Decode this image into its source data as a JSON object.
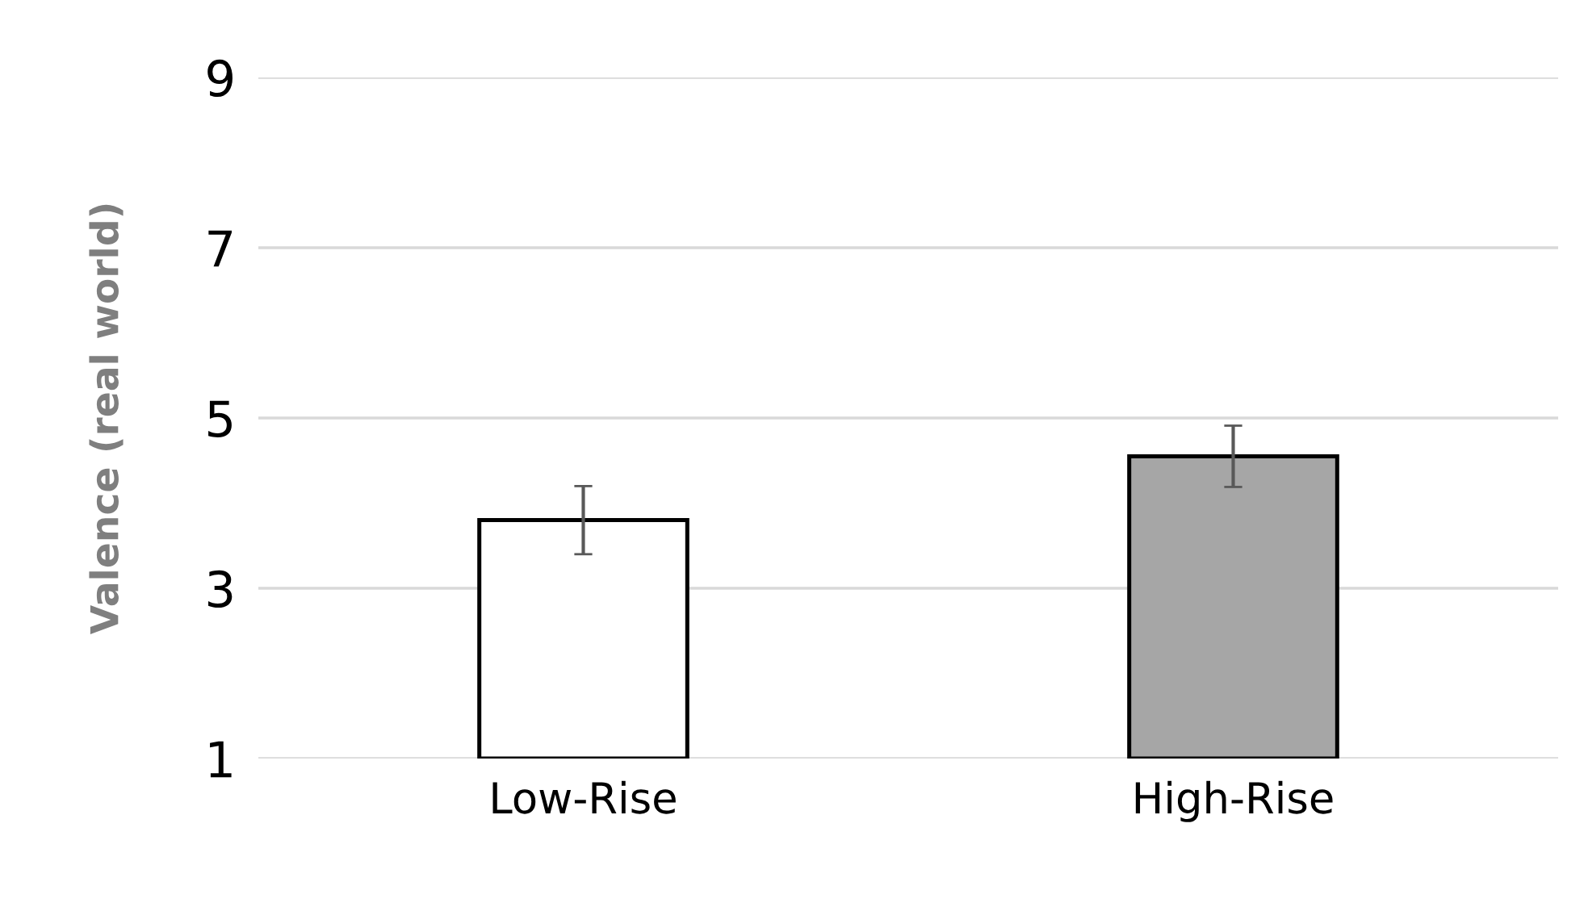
{
  "chart_data": {
    "type": "bar",
    "ylabel": "Valence (real world)",
    "categories": [
      "Low-Rise",
      "High-Rise"
    ],
    "values": [
      3.8,
      4.55
    ],
    "colors": [
      "#ffffff",
      "#a6a6a6"
    ],
    "errors": [
      0.4,
      0.36
    ],
    "ylim": [
      1,
      9
    ],
    "yticks": [
      1,
      3,
      5,
      7,
      9
    ],
    "grid": "y"
  }
}
